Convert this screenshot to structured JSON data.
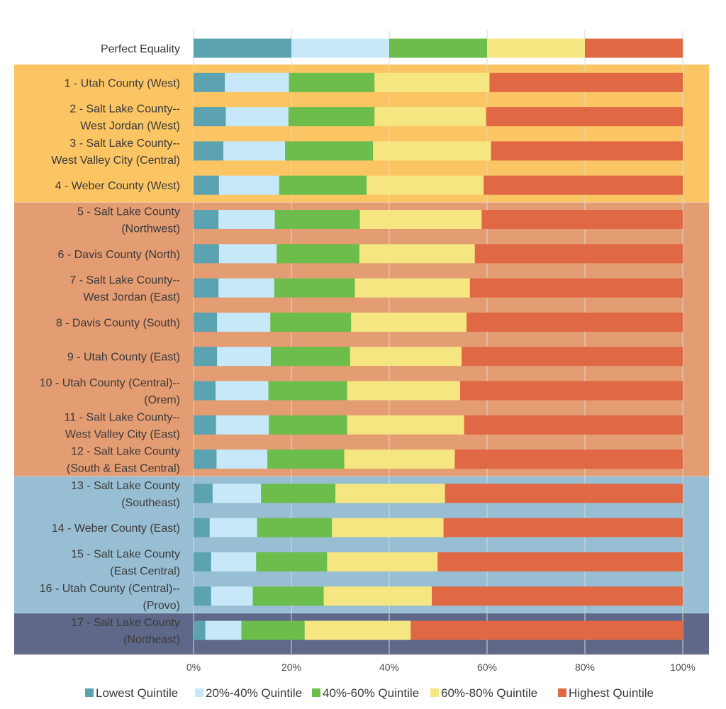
{
  "chart_data": {
    "type": "bar",
    "orientation": "horizontal",
    "stacked": true,
    "xlim": [
      0,
      100
    ],
    "x_ticks": [
      "0%",
      "20%",
      "40%",
      "60%",
      "80%",
      "100%"
    ],
    "grid": true,
    "legend_position": "bottom",
    "categories": [
      [
        "Perfect Equality"
      ],
      [
        "1 - Utah County (West)"
      ],
      [
        "2 - Salt Lake County--",
        "West Jordan (West)"
      ],
      [
        "3 - Salt Lake County--",
        "West Valley City (Central)"
      ],
      [
        "4 - Weber County (West)"
      ],
      [
        "5 - Salt Lake County",
        "(Northwest)"
      ],
      [
        "6 - Davis County (North)"
      ],
      [
        "7 - Salt Lake County--",
        "West Jordan (East)"
      ],
      [
        "8 - Davis County (South)"
      ],
      [
        "9 - Utah County (East)"
      ],
      [
        "10 - Utah County (Central)--",
        "(Orem)"
      ],
      [
        "11 - Salt Lake County--",
        "West Valley City (East)"
      ],
      [
        "12 - Salt Lake County",
        "(South & East Central)"
      ],
      [
        "13 - Salt Lake County",
        "(Southeast)"
      ],
      [
        "14 - Weber County (East)"
      ],
      [
        "15 - Salt Lake County",
        "(East Central)"
      ],
      [
        "16 - Utah County (Central)--",
        "(Provo)"
      ],
      [
        "17 - Salt Lake County",
        "(Northeast)"
      ]
    ],
    "series": [
      {
        "name": "Lowest Quintile",
        "color": "#5ba3b1",
        "values": [
          20,
          6.4,
          6.6,
          6.1,
          5.2,
          5.1,
          5.2,
          5.1,
          4.8,
          4.8,
          4.5,
          4.6,
          4.7,
          3.9,
          3.3,
          3.6,
          3.6,
          2.4
        ]
      },
      {
        "name": "20%-40% Quintile",
        "color": "#c6e8f8",
        "values": [
          20,
          13.1,
          12.8,
          12.6,
          12.3,
          11.5,
          11.8,
          11.4,
          10.9,
          11.0,
          10.8,
          10.8,
          10.4,
          9.9,
          9.7,
          9.2,
          8.5,
          7.4
        ]
      },
      {
        "name": "40%-60% Quintile",
        "color": "#6cbd4b",
        "values": [
          20,
          17.5,
          17.6,
          18.0,
          17.9,
          17.4,
          16.9,
          16.5,
          16.5,
          16.2,
          16.1,
          16.0,
          15.7,
          15.2,
          15.3,
          14.5,
          14.5,
          12.9
        ]
      },
      {
        "name": "60%-80% Quintile",
        "color": "#f5e681",
        "values": [
          20,
          23.5,
          22.8,
          24.1,
          23.9,
          24.9,
          23.6,
          23.5,
          23.6,
          22.8,
          23.1,
          23.9,
          22.6,
          22.4,
          22.8,
          22.6,
          22.1,
          21.7
        ]
      },
      {
        "name": "Highest Quintile",
        "color": "#e06845",
        "values": [
          20,
          39.5,
          40.2,
          39.2,
          40.7,
          41.1,
          42.5,
          43.5,
          44.2,
          45.2,
          45.5,
          44.7,
          46.6,
          48.6,
          48.9,
          50.1,
          51.3,
          55.6
        ]
      }
    ],
    "bands": [
      {
        "from": 1,
        "to": 4,
        "color": "#fcc564"
      },
      {
        "from": 5,
        "to": 12,
        "color": "#e49c72"
      },
      {
        "from": 13,
        "to": 16,
        "color": "#98bed3"
      },
      {
        "from": 17,
        "to": 17,
        "color": "#5f6888"
      }
    ]
  }
}
